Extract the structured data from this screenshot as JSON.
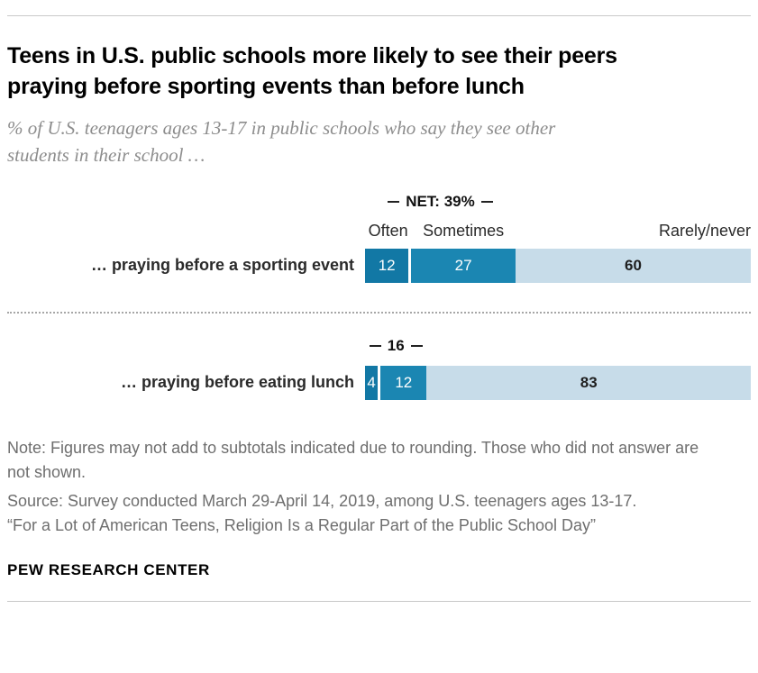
{
  "header": {
    "title": "Teens in U.S. public schools more likely to see their peers praying before sporting events than before lunch",
    "subtitle": "% of U.S. teenagers ages 13-17 in public schools who say they see other students in their school …"
  },
  "chart_data": {
    "type": "bar",
    "stacked": true,
    "orientation": "horizontal",
    "categories": [
      "… praying before a sporting event",
      "… praying before eating lunch"
    ],
    "series": [
      {
        "name": "Often",
        "color": "#1278a5",
        "values": [
          12,
          4
        ]
      },
      {
        "name": "Sometimes",
        "color": "#1b86b2",
        "values": [
          27,
          12
        ]
      },
      {
        "name": "Rarely/never",
        "color": "#c7dce9",
        "values": [
          60,
          83
        ]
      }
    ],
    "nets": [
      {
        "label": "NET: 39%",
        "value": 39
      },
      {
        "label": "16",
        "value": 16
      }
    ],
    "xlim": [
      0,
      100
    ],
    "value_labels": true,
    "grid": false,
    "legend_position": "above-bars"
  },
  "footer": {
    "note": "Note: Figures may not add to subtotals indicated due to rounding. Those who did not answer are not shown.",
    "source": "Source: Survey conducted March 29-April 14, 2019, among U.S. teenagers ages 13-17.",
    "report": "“For a Lot of American Teens, Religion Is a Regular Part of the Public School Day”",
    "brand": "PEW RESEARCH CENTER"
  }
}
